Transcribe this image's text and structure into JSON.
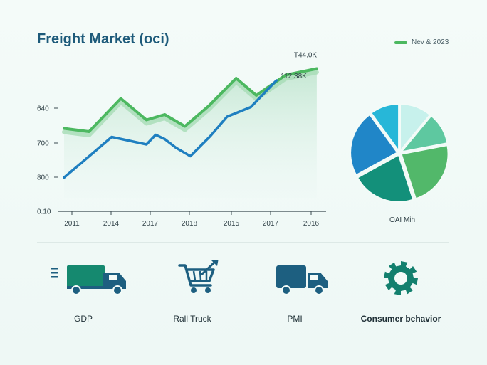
{
  "header": {
    "title": "Freight Market (oci)",
    "legend_label": "Nev & 2023",
    "legend_color": "#4cb860"
  },
  "chart_data": [
    {
      "type": "line",
      "x_tick_labels": [
        "2011",
        "2014",
        "2017",
        "2018",
        "2015",
        "2017",
        "2016"
      ],
      "y_tick_labels": [
        "640",
        "700",
        "800",
        "0.10"
      ],
      "x_range": [
        0,
        7
      ],
      "y_range": [
        0,
        100
      ],
      "series": [
        {
          "color": "#4cb860",
          "x": [
            0,
            0.68,
            1.55,
            2.25,
            2.75,
            3.3,
            3.95,
            4.7,
            5.25,
            6.05,
            6.9
          ],
          "y": [
            65,
            62,
            93,
            73,
            78,
            67,
            86,
            112,
            96,
            115,
            121
          ],
          "end_label": "T44.0K"
        },
        {
          "color": "#1f7fc0",
          "x": [
            0,
            0.55,
            1.3,
            2.25,
            2.5,
            2.75,
            3.05,
            3.45,
            4.0,
            4.45,
            5.1,
            5.8
          ],
          "y": [
            19,
            35,
            57,
            50,
            59,
            55,
            47,
            39,
            58,
            76,
            85,
            110
          ],
          "end_label": "112,38K"
        }
      ],
      "grid": false
    },
    {
      "type": "pie",
      "label": "OAI Mih",
      "slices": [
        {
          "value": 11,
          "color": "#c7f1ec"
        },
        {
          "value": 11,
          "color": "#5ec8a0"
        },
        {
          "value": 23,
          "color": "#52b86a"
        },
        {
          "value": 22,
          "color": "#13907a"
        },
        {
          "value": 23,
          "color": "#2086c8"
        },
        {
          "value": 10,
          "color": "#27b7d8"
        }
      ]
    }
  ],
  "categories": [
    {
      "label": "GDP",
      "icon": "truck-speed-icon",
      "bold": false
    },
    {
      "label": "Rall Truck",
      "icon": "shopping-cart-icon",
      "bold": false
    },
    {
      "label": "PMI",
      "icon": "delivery-truck-icon",
      "bold": false
    },
    {
      "label": "Consumer behavior",
      "icon": "gear-icon",
      "bold": true
    }
  ]
}
